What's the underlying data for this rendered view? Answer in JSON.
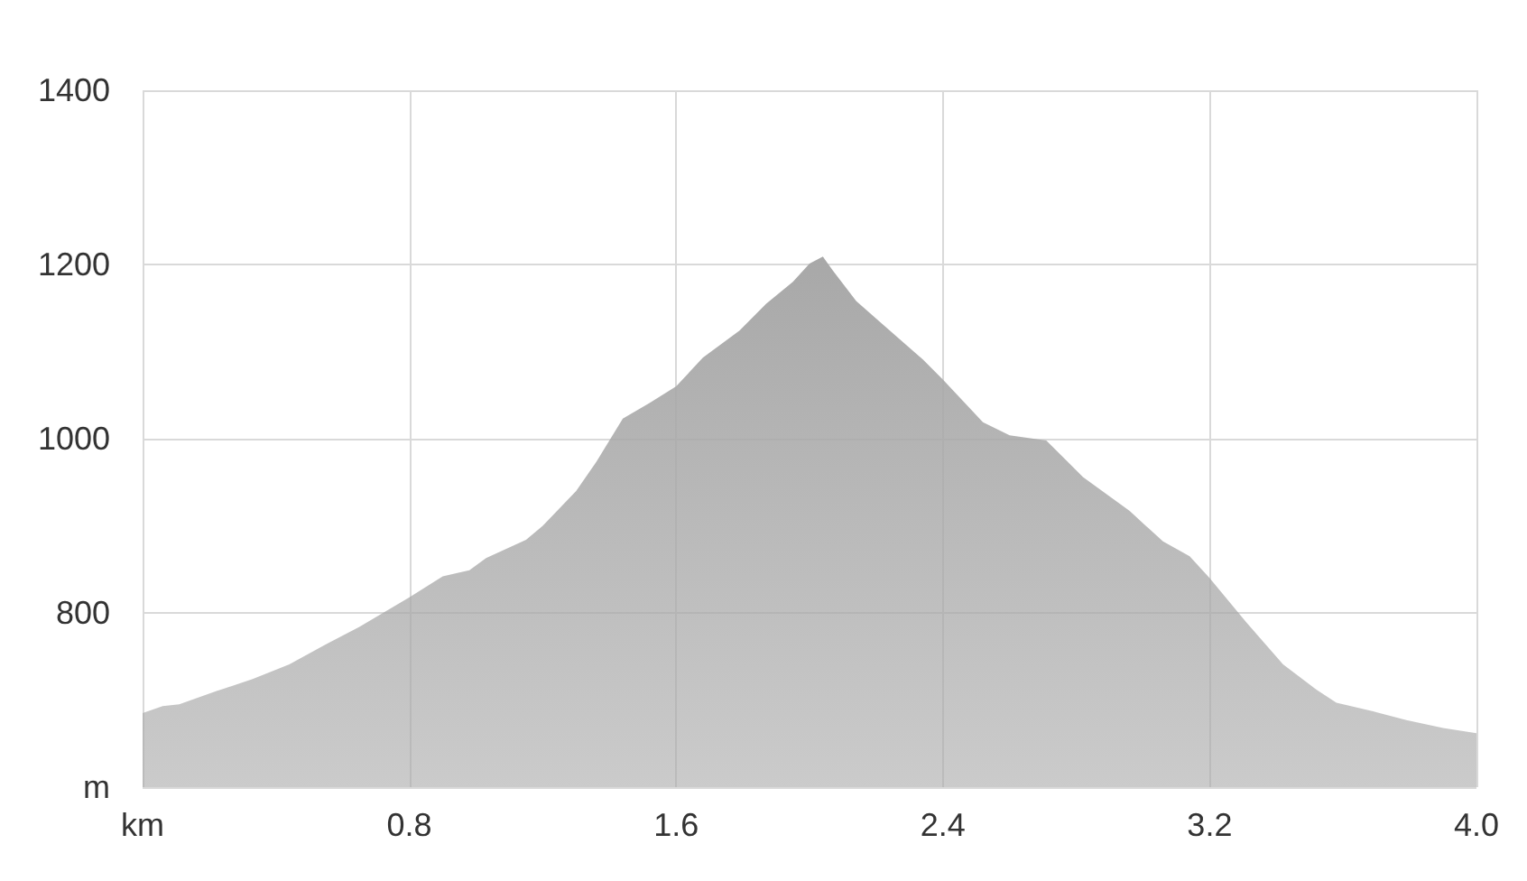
{
  "chart_data": {
    "type": "area",
    "x": [
      0,
      0.06,
      0.11,
      0.22,
      0.33,
      0.44,
      0.55,
      0.65,
      0.8,
      0.9,
      0.98,
      1.03,
      1.15,
      1.2,
      1.3,
      1.36,
      1.44,
      1.52,
      1.6,
      1.68,
      1.79,
      1.87,
      1.95,
      2.0,
      2.04,
      2.07,
      2.14,
      2.22,
      2.34,
      2.4,
      2.52,
      2.6,
      2.71,
      2.82,
      2.96,
      3.06,
      3.14,
      3.2,
      3.31,
      3.42,
      3.52,
      3.58,
      3.69,
      3.79,
      3.9,
      4.0
    ],
    "series": [
      {
        "color": "#a8a8a8",
        "values": [
          685,
          693,
          695,
          710,
          724,
          741,
          764,
          784,
          818,
          842,
          849,
          863,
          884,
          900,
          940,
          973,
          1023,
          1041,
          1060,
          1093,
          1124,
          1155,
          1180,
          1201,
          1209,
          1193,
          1158,
          1131,
          1091,
          1068,
          1019,
          1004,
          998,
          956,
          917,
          882,
          865,
          840,
          789,
          741,
          712,
          697,
          687,
          677,
          668,
          662
        ]
      }
    ],
    "xlim": [
      0,
      4.0
    ],
    "xticks": [
      {
        "value": 0,
        "label": "km"
      },
      0.8,
      1.6,
      2.4,
      3.2,
      {
        "value": 4.0,
        "label": "4.0"
      }
    ],
    "ylim": [
      600,
      1400
    ],
    "yticks": [
      {
        "value": 600,
        "label": "m"
      },
      800,
      1000,
      1200,
      1400
    ],
    "grid": true
  }
}
